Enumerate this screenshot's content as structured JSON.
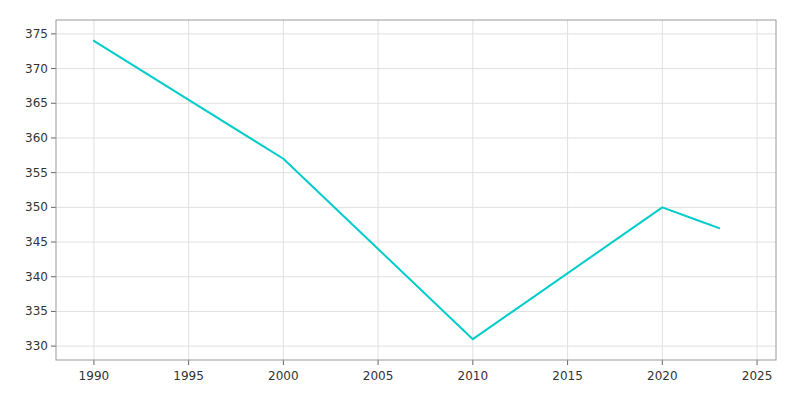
{
  "chart_data": {
    "type": "line",
    "x": [
      1990,
      2000,
      2010,
      2020,
      2022,
      2023
    ],
    "values": [
      374,
      357,
      331,
      350,
      348,
      347
    ],
    "color": "#00CCCC",
    "xlim": [
      1988,
      2026
    ],
    "ylim": [
      328,
      377
    ],
    "xticks": [
      1990,
      1995,
      2000,
      2005,
      2010,
      2015,
      2020,
      2025
    ],
    "yticks": [
      330,
      335,
      340,
      345,
      350,
      355,
      360,
      365,
      370,
      375
    ],
    "grid": true
  }
}
